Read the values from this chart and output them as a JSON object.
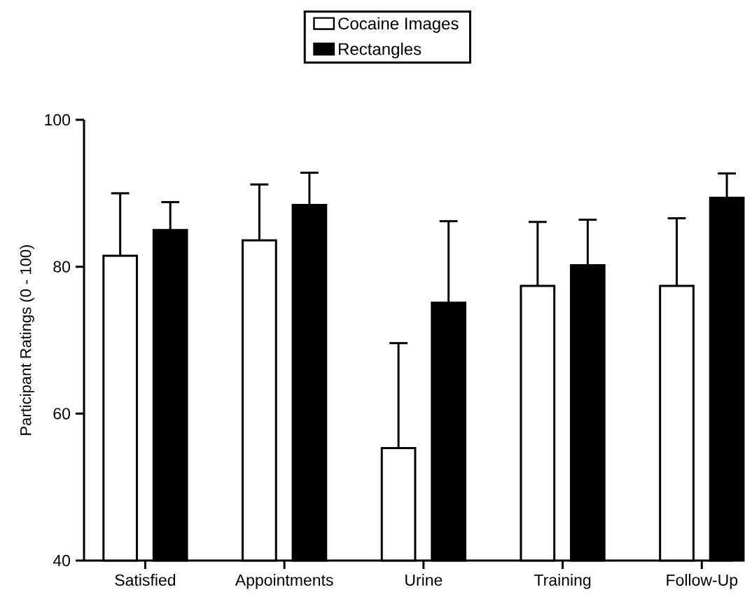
{
  "chart_data": {
    "type": "bar",
    "ylabel": "Participant Ratings (0 - 100)",
    "categories": [
      "Satisfied",
      "Appointments",
      "Urine",
      "Training",
      "Follow-Up"
    ],
    "series": [
      {
        "name": "Cocaine Images",
        "color": "#ffffff",
        "values": [
          81.5,
          83.6,
          55.3,
          77.4,
          77.4
        ],
        "errors": [
          [
            81.5,
            90.0
          ],
          [
            83.6,
            91.2
          ],
          [
            55.3,
            69.6
          ],
          [
            77.4,
            86.1
          ],
          [
            77.4,
            86.6
          ]
        ]
      },
      {
        "name": "Rectangles",
        "color": "#000000",
        "values": [
          85.0,
          88.4,
          75.1,
          80.2,
          89.4
        ],
        "errors": [
          [
            85.0,
            88.8
          ],
          [
            88.4,
            92.8
          ],
          [
            75.1,
            86.2
          ],
          [
            80.2,
            86.4
          ],
          [
            89.4,
            92.7
          ]
        ]
      }
    ],
    "ylim": [
      40,
      100
    ],
    "yticks": [
      40,
      60,
      80,
      100
    ],
    "grid": false,
    "legend": "top"
  }
}
